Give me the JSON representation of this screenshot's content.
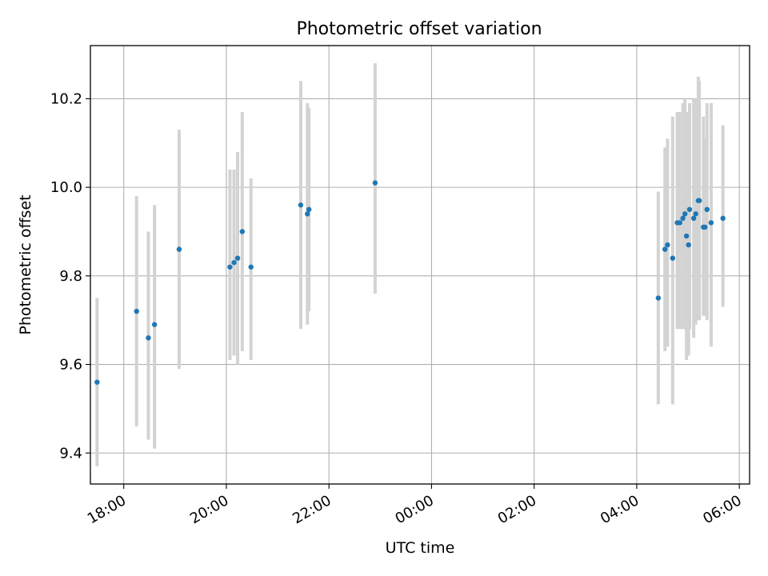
{
  "chart_data": {
    "type": "scatter",
    "title": "Photometric offset variation",
    "xlabel": "UTC time",
    "ylabel": "Photometric offset",
    "grid": true,
    "legend": "none",
    "xlim": [
      17.35,
      30.2
    ],
    "ylim": [
      9.33,
      10.32
    ],
    "x_ticks": [
      {
        "value": 18,
        "label": "18:00"
      },
      {
        "value": 20,
        "label": "20:00"
      },
      {
        "value": 22,
        "label": "22:00"
      },
      {
        "value": 24,
        "label": "00:00"
      },
      {
        "value": 26,
        "label": "02:00"
      },
      {
        "value": 28,
        "label": "04:00"
      },
      {
        "value": 30,
        "label": "06:00"
      }
    ],
    "y_ticks": [
      {
        "value": 9.4,
        "label": "9.4"
      },
      {
        "value": 9.6,
        "label": "9.6"
      },
      {
        "value": 9.8,
        "label": "9.8"
      },
      {
        "value": 10.0,
        "label": "10.0"
      },
      {
        "value": 10.2,
        "label": "10.2"
      }
    ],
    "point_color": "#1f77b4",
    "errorbar_color": "#d3d3d3",
    "points": [
      {
        "x": 17.48,
        "y": 9.56,
        "low": 9.37,
        "high": 9.75
      },
      {
        "x": 18.25,
        "y": 9.72,
        "low": 9.46,
        "high": 9.98
      },
      {
        "x": 18.48,
        "y": 9.66,
        "low": 9.43,
        "high": 9.9
      },
      {
        "x": 18.6,
        "y": 9.69,
        "low": 9.41,
        "high": 9.96
      },
      {
        "x": 19.08,
        "y": 9.86,
        "low": 9.59,
        "high": 10.13
      },
      {
        "x": 20.07,
        "y": 9.82,
        "low": 9.61,
        "high": 10.04
      },
      {
        "x": 20.15,
        "y": 9.83,
        "low": 9.62,
        "high": 10.04
      },
      {
        "x": 20.22,
        "y": 9.84,
        "low": 9.6,
        "high": 10.08
      },
      {
        "x": 20.31,
        "y": 9.9,
        "low": 9.63,
        "high": 10.17
      },
      {
        "x": 20.48,
        "y": 9.82,
        "low": 9.61,
        "high": 10.02
      },
      {
        "x": 21.45,
        "y": 9.96,
        "low": 9.68,
        "high": 10.24
      },
      {
        "x": 21.58,
        "y": 9.94,
        "low": 9.69,
        "high": 10.19
      },
      {
        "x": 21.61,
        "y": 9.95,
        "low": 9.72,
        "high": 10.18
      },
      {
        "x": 22.9,
        "y": 10.01,
        "low": 9.76,
        "high": 10.28
      },
      {
        "x": 28.42,
        "y": 9.75,
        "low": 9.51,
        "high": 9.99
      },
      {
        "x": 28.55,
        "y": 9.86,
        "low": 9.63,
        "high": 10.09
      },
      {
        "x": 28.6,
        "y": 9.87,
        "low": 9.64,
        "high": 10.11
      },
      {
        "x": 28.7,
        "y": 9.84,
        "low": 9.51,
        "high": 10.16
      },
      {
        "x": 28.79,
        "y": 9.92,
        "low": 9.68,
        "high": 10.17
      },
      {
        "x": 28.84,
        "y": 9.92,
        "low": 9.68,
        "high": 10.17
      },
      {
        "x": 28.9,
        "y": 9.93,
        "low": 9.68,
        "high": 10.19
      },
      {
        "x": 28.94,
        "y": 9.94,
        "low": 9.68,
        "high": 10.2
      },
      {
        "x": 28.97,
        "y": 9.89,
        "low": 9.61,
        "high": 10.17
      },
      {
        "x": 29.01,
        "y": 9.87,
        "low": 9.62,
        "high": 10.12
      },
      {
        "x": 29.03,
        "y": 9.95,
        "low": 9.68,
        "high": 10.19
      },
      {
        "x": 29.11,
        "y": 9.93,
        "low": 9.66,
        "high": 10.2
      },
      {
        "x": 29.15,
        "y": 9.94,
        "low": 9.69,
        "high": 10.2
      },
      {
        "x": 29.2,
        "y": 9.97,
        "low": 9.7,
        "high": 10.25
      },
      {
        "x": 29.22,
        "y": 9.97,
        "low": 9.7,
        "high": 10.24
      },
      {
        "x": 29.3,
        "y": 9.91,
        "low": 9.71,
        "high": 10.16
      },
      {
        "x": 29.33,
        "y": 9.91,
        "low": 9.71,
        "high": 10.11
      },
      {
        "x": 29.37,
        "y": 9.95,
        "low": 9.7,
        "high": 10.19
      },
      {
        "x": 29.45,
        "y": 9.92,
        "low": 9.64,
        "high": 10.19
      },
      {
        "x": 29.68,
        "y": 9.93,
        "low": 9.73,
        "high": 10.14
      }
    ]
  }
}
